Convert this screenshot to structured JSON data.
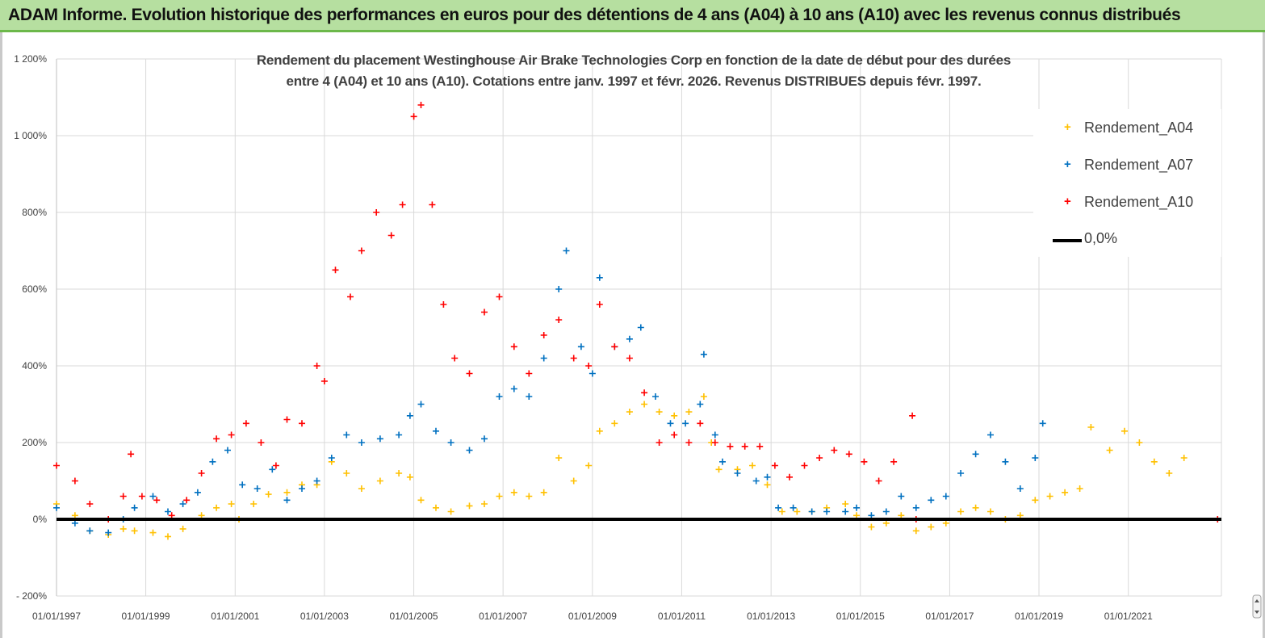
{
  "banner": {
    "title": "ADAM Informe. Evolution historique des performances en euros pour des détentions de 4 ans (A04) à 10 ans (A10) avec les revenus connus distribués"
  },
  "colors": {
    "banner_bg": "#b6dfa0",
    "banner_border": "#6cb84a",
    "A04": "#ffc000",
    "A07": "#0070c0",
    "A10": "#ff0000",
    "zero_line": "#000000",
    "grid": "#d9d9d9"
  },
  "chart_data": {
    "type": "scatter",
    "title_line1": "Rendement du placement Westinghouse Air Brake Technologies Corp en fonction de la date de début pour des durées",
    "title_line2": "entre 4 (A04) et 10 ans (A10). Cotations entre janv. 1997 et févr. 2026. Revenus DISTRIBUES depuis févr. 1997.",
    "xlim": [
      "1997-01-01",
      "2023-02-01"
    ],
    "ylim": [
      -200,
      1200
    ],
    "y_ticks": [
      -200,
      0,
      200,
      400,
      600,
      800,
      1000,
      1200
    ],
    "y_tick_labels": [
      "- 200%",
      "0%",
      "200%",
      "400%",
      "600%",
      "800%",
      "1 000%",
      "1 200%"
    ],
    "x_tick_labels": [
      "01/01/1997",
      "01/01/1999",
      "01/01/2001",
      "01/01/2003",
      "01/01/2005",
      "01/01/2007",
      "01/01/2009",
      "01/01/2011",
      "01/01/2013",
      "01/01/2015",
      "01/01/2017",
      "01/01/2019",
      "01/01/2021"
    ],
    "x_ticks": [
      "1997-01-01",
      "1999-01-01",
      "2001-01-01",
      "2003-01-01",
      "2005-01-01",
      "2007-01-01",
      "2009-01-01",
      "2011-01-01",
      "2013-01-01",
      "2015-01-01",
      "2017-01-01",
      "2019-01-01",
      "2021-01-01"
    ],
    "gridlines": "horizontal and vertical",
    "legend_position": "top-right",
    "series": [
      {
        "name": "Rendement_A04",
        "color": "#ffc000",
        "marker": "+",
        "points": [
          [
            "1997-01-01",
            40
          ],
          [
            "1997-06-01",
            10
          ],
          [
            "1997-10-01",
            -30
          ],
          [
            "1998-03-01",
            -40
          ],
          [
            "1998-07-01",
            -25
          ],
          [
            "1998-10-01",
            -30
          ],
          [
            "1999-03-01",
            -35
          ],
          [
            "1999-07-01",
            -45
          ],
          [
            "1999-11-01",
            -25
          ],
          [
            "2000-04-01",
            10
          ],
          [
            "2000-08-01",
            30
          ],
          [
            "2000-12-01",
            40
          ],
          [
            "2001-02-01",
            0
          ],
          [
            "2001-06-01",
            40
          ],
          [
            "2001-10-01",
            65
          ],
          [
            "2002-03-01",
            70
          ],
          [
            "2002-07-01",
            90
          ],
          [
            "2002-11-01",
            90
          ],
          [
            "2003-03-01",
            150
          ],
          [
            "2003-07-01",
            120
          ],
          [
            "2003-11-01",
            80
          ],
          [
            "2004-04-01",
            100
          ],
          [
            "2004-09-01",
            120
          ],
          [
            "2004-12-01",
            110
          ],
          [
            "2005-03-01",
            50
          ],
          [
            "2005-07-01",
            30
          ],
          [
            "2005-11-01",
            20
          ],
          [
            "2006-04-01",
            35
          ],
          [
            "2006-08-01",
            40
          ],
          [
            "2006-12-01",
            60
          ],
          [
            "2007-04-01",
            70
          ],
          [
            "2007-08-01",
            60
          ],
          [
            "2007-12-01",
            70
          ],
          [
            "2008-04-01",
            160
          ],
          [
            "2008-08-01",
            100
          ],
          [
            "2008-12-01",
            140
          ],
          [
            "2009-03-01",
            230
          ],
          [
            "2009-07-01",
            250
          ],
          [
            "2009-11-01",
            280
          ],
          [
            "2010-03-01",
            300
          ],
          [
            "2010-07-01",
            280
          ],
          [
            "2010-11-01",
            270
          ],
          [
            "2011-03-01",
            280
          ],
          [
            "2011-07-01",
            320
          ],
          [
            "2011-09-01",
            200
          ],
          [
            "2011-11-01",
            130
          ],
          [
            "2012-04-01",
            130
          ],
          [
            "2012-08-01",
            140
          ],
          [
            "2012-12-01",
            90
          ],
          [
            "2013-04-01",
            20
          ],
          [
            "2013-08-01",
            20
          ],
          [
            "2013-12-01",
            20
          ],
          [
            "2014-04-01",
            30
          ],
          [
            "2014-09-01",
            40
          ],
          [
            "2014-12-01",
            10
          ],
          [
            "2015-04-01",
            -20
          ],
          [
            "2015-08-01",
            -10
          ],
          [
            "2015-12-01",
            10
          ],
          [
            "2016-04-01",
            -30
          ],
          [
            "2016-08-01",
            -20
          ],
          [
            "2016-12-01",
            -10
          ],
          [
            "2017-04-01",
            20
          ],
          [
            "2017-08-01",
            30
          ],
          [
            "2017-12-01",
            20
          ],
          [
            "2018-04-01",
            0
          ],
          [
            "2018-08-01",
            10
          ],
          [
            "2018-12-01",
            50
          ],
          [
            "2019-04-01",
            60
          ],
          [
            "2019-08-01",
            70
          ],
          [
            "2019-12-01",
            80
          ],
          [
            "2020-03-01",
            240
          ],
          [
            "2020-08-01",
            180
          ],
          [
            "2020-12-01",
            230
          ],
          [
            "2021-04-01",
            200
          ],
          [
            "2021-08-01",
            150
          ],
          [
            "2021-12-01",
            120
          ],
          [
            "2022-04-01",
            160
          ]
        ]
      },
      {
        "name": "Rendement_A07",
        "color": "#0070c0",
        "marker": "+",
        "points": [
          [
            "1997-01-01",
            30
          ],
          [
            "1997-06-01",
            -10
          ],
          [
            "1997-10-01",
            -30
          ],
          [
            "1998-03-01",
            -35
          ],
          [
            "1998-07-01",
            0
          ],
          [
            "1998-10-01",
            30
          ],
          [
            "1999-03-01",
            60
          ],
          [
            "1999-07-01",
            20
          ],
          [
            "1999-11-01",
            40
          ],
          [
            "2000-03-01",
            70
          ],
          [
            "2000-07-01",
            150
          ],
          [
            "2000-11-01",
            180
          ],
          [
            "2001-03-01",
            90
          ],
          [
            "2001-07-01",
            80
          ],
          [
            "2001-11-01",
            130
          ],
          [
            "2002-03-01",
            50
          ],
          [
            "2002-07-01",
            80
          ],
          [
            "2002-11-01",
            100
          ],
          [
            "2003-03-01",
            160
          ],
          [
            "2003-07-01",
            220
          ],
          [
            "2003-11-01",
            200
          ],
          [
            "2004-04-01",
            210
          ],
          [
            "2004-09-01",
            220
          ],
          [
            "2004-12-01",
            270
          ],
          [
            "2005-03-01",
            300
          ],
          [
            "2005-07-01",
            230
          ],
          [
            "2005-11-01",
            200
          ],
          [
            "2006-04-01",
            180
          ],
          [
            "2006-08-01",
            210
          ],
          [
            "2006-12-01",
            320
          ],
          [
            "2007-04-01",
            340
          ],
          [
            "2007-08-01",
            320
          ],
          [
            "2007-12-01",
            420
          ],
          [
            "2008-04-01",
            600
          ],
          [
            "2008-06-01",
            700
          ],
          [
            "2008-10-01",
            450
          ],
          [
            "2009-01-01",
            380
          ],
          [
            "2009-03-01",
            630
          ],
          [
            "2009-07-01",
            450
          ],
          [
            "2009-11-01",
            470
          ],
          [
            "2010-02-01",
            500
          ],
          [
            "2010-06-01",
            320
          ],
          [
            "2010-10-01",
            250
          ],
          [
            "2011-02-01",
            250
          ],
          [
            "2011-06-01",
            300
          ],
          [
            "2011-07-01",
            430
          ],
          [
            "2011-10-01",
            220
          ],
          [
            "2011-12-01",
            150
          ],
          [
            "2012-04-01",
            120
          ],
          [
            "2012-09-01",
            100
          ],
          [
            "2012-12-01",
            110
          ],
          [
            "2013-03-01",
            30
          ],
          [
            "2013-07-01",
            30
          ],
          [
            "2013-12-01",
            20
          ],
          [
            "2014-04-01",
            20
          ],
          [
            "2014-09-01",
            20
          ],
          [
            "2014-12-01",
            30
          ],
          [
            "2015-04-01",
            10
          ],
          [
            "2015-08-01",
            20
          ],
          [
            "2015-12-01",
            60
          ],
          [
            "2016-04-01",
            30
          ],
          [
            "2016-08-01",
            50
          ],
          [
            "2016-12-01",
            60
          ],
          [
            "2017-04-01",
            120
          ],
          [
            "2017-08-01",
            170
          ],
          [
            "2017-12-01",
            220
          ],
          [
            "2018-04-01",
            150
          ],
          [
            "2018-08-01",
            80
          ],
          [
            "2018-12-01",
            160
          ],
          [
            "2019-02-01",
            250
          ]
        ]
      },
      {
        "name": "Rendement_A10",
        "color": "#ff0000",
        "marker": "+",
        "points": [
          [
            "1997-01-01",
            140
          ],
          [
            "1997-06-01",
            100
          ],
          [
            "1997-10-01",
            40
          ],
          [
            "1998-03-01",
            0
          ],
          [
            "1998-07-01",
            60
          ],
          [
            "1998-09-01",
            170
          ],
          [
            "1998-12-01",
            60
          ],
          [
            "1999-04-01",
            50
          ],
          [
            "1999-08-01",
            10
          ],
          [
            "1999-12-01",
            50
          ],
          [
            "2000-04-01",
            120
          ],
          [
            "2000-08-01",
            210
          ],
          [
            "2000-12-01",
            220
          ],
          [
            "2001-04-01",
            250
          ],
          [
            "2001-08-01",
            200
          ],
          [
            "2001-12-01",
            140
          ],
          [
            "2002-03-01",
            260
          ],
          [
            "2002-07-01",
            250
          ],
          [
            "2002-11-01",
            400
          ],
          [
            "2003-01-01",
            360
          ],
          [
            "2003-04-01",
            650
          ],
          [
            "2003-08-01",
            580
          ],
          [
            "2003-11-01",
            700
          ],
          [
            "2004-03-01",
            800
          ],
          [
            "2004-07-01",
            740
          ],
          [
            "2004-10-01",
            820
          ],
          [
            "2005-01-01",
            1050
          ],
          [
            "2005-03-01",
            1080
          ],
          [
            "2005-06-01",
            820
          ],
          [
            "2005-09-01",
            560
          ],
          [
            "2005-12-01",
            420
          ],
          [
            "2006-04-01",
            380
          ],
          [
            "2006-08-01",
            540
          ],
          [
            "2006-12-01",
            580
          ],
          [
            "2007-04-01",
            450
          ],
          [
            "2007-08-01",
            380
          ],
          [
            "2007-12-01",
            480
          ],
          [
            "2008-04-01",
            520
          ],
          [
            "2008-08-01",
            420
          ],
          [
            "2008-12-01",
            400
          ],
          [
            "2009-03-01",
            560
          ],
          [
            "2009-07-01",
            450
          ],
          [
            "2009-11-01",
            420
          ],
          [
            "2010-03-01",
            330
          ],
          [
            "2010-07-01",
            200
          ],
          [
            "2010-11-01",
            220
          ],
          [
            "2011-03-01",
            200
          ],
          [
            "2011-06-01",
            250
          ],
          [
            "2011-10-01",
            200
          ],
          [
            "2012-02-01",
            190
          ],
          [
            "2012-06-01",
            190
          ],
          [
            "2012-10-01",
            190
          ],
          [
            "2013-02-01",
            140
          ],
          [
            "2013-06-01",
            110
          ],
          [
            "2013-10-01",
            140
          ],
          [
            "2014-02-01",
            160
          ],
          [
            "2014-06-01",
            180
          ],
          [
            "2014-10-01",
            170
          ],
          [
            "2015-02-01",
            150
          ],
          [
            "2015-06-01",
            100
          ],
          [
            "2015-10-01",
            150
          ],
          [
            "2016-03-01",
            270
          ],
          [
            "2016-04-01",
            0
          ],
          [
            "2023-01-01",
            0
          ]
        ]
      }
    ],
    "zero_line": {
      "name": "0,0%",
      "y": 0,
      "color": "#000000"
    }
  },
  "legend": {
    "items": [
      {
        "label": "Rendement_A04",
        "marker": "+",
        "color": "#ffc000"
      },
      {
        "label": "Rendement_A07",
        "marker": "+",
        "color": "#0070c0"
      },
      {
        "label": "Rendement_A10",
        "marker": "+",
        "color": "#ff0000"
      },
      {
        "label": "0,0%",
        "marker": "line",
        "color": "#000000"
      }
    ]
  },
  "icons": {
    "scroll": "scroll-handle-icon"
  }
}
